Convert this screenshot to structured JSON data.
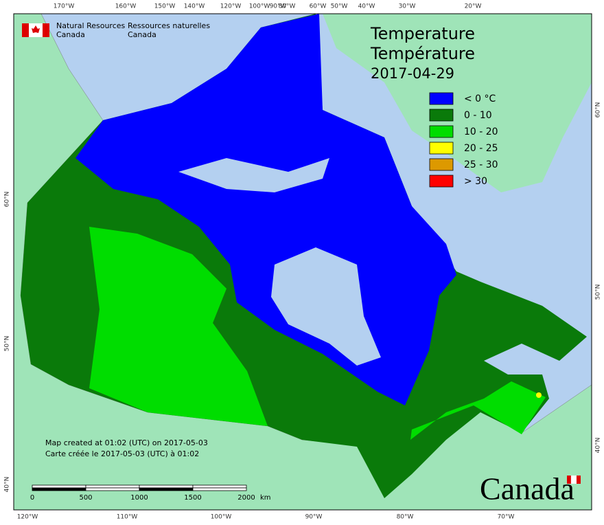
{
  "header": {
    "agency_en": [
      "Natural Resources",
      "Canada"
    ],
    "agency_fr": [
      "Ressources naturelles",
      "Canada"
    ]
  },
  "title": {
    "en": "Temperature",
    "fr": "Température",
    "date": "2017-04-29"
  },
  "legend": [
    {
      "label": "< 0 °C",
      "color": "#0000ff"
    },
    {
      "label": "0 - 10",
      "color": "#0a7a0a"
    },
    {
      "label": "10 - 20",
      "color": "#00dd00"
    },
    {
      "label": "20 - 25",
      "color": "#ffff00"
    },
    {
      "label": "25 - 30",
      "color": "#dd9900"
    },
    {
      "label": "> 30",
      "color": "#ff0000"
    }
  ],
  "graticule": {
    "top": [
      "170°W",
      "160°W",
      "150°W",
      "140°W",
      "120°W",
      "100°W",
      "90°W",
      "80°W",
      "60°W",
      "50°W",
      "40°W",
      "30°W",
      "20°W"
    ],
    "bottom": [
      "120°W",
      "110°W",
      "100°W",
      "90°W",
      "80°W",
      "70°W"
    ],
    "left": [
      "60°N",
      "50°N",
      "40°N"
    ],
    "right": [
      "60°N",
      "50°N",
      "40°N"
    ]
  },
  "footnote": [
    "Map created at 01:02 (UTC) on 2017-05-03",
    "Carte créée le 2017-05-03 (UTC) à 01:02"
  ],
  "scale": {
    "labels": [
      "0",
      "500",
      "1000",
      "1500",
      "2000"
    ],
    "unit": "km"
  },
  "wordmark": "Canada"
}
